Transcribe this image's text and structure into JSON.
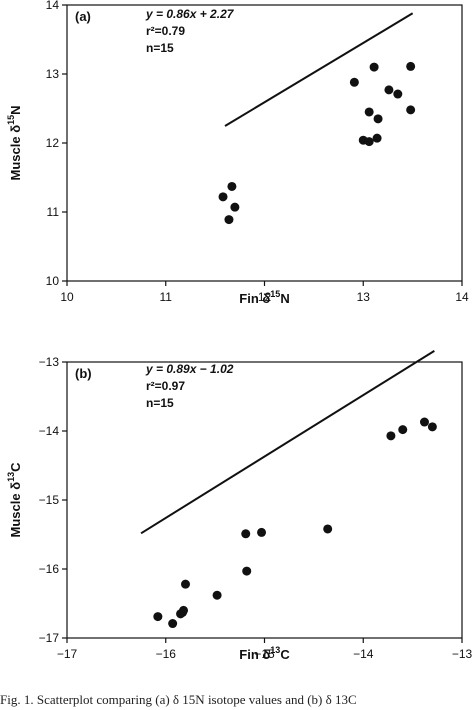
{
  "chart_data": [
    {
      "type": "scatter",
      "panel_label": "(a)",
      "xlabel": {
        "text": "Fin δ",
        "sup": "15",
        "suffix": "N"
      },
      "ylabel": {
        "text": "Muscle δ",
        "sup": "15",
        "suffix": "N"
      },
      "xlim": [
        10,
        14
      ],
      "ylim": [
        10,
        14
      ],
      "xticks": [
        "10",
        "11",
        "12",
        "13",
        "14"
      ],
      "yticks": [
        "10",
        "11",
        "12",
        "13",
        "14"
      ],
      "annotation": {
        "equation": "y = 0.86x + 2.27",
        "r2": "r²=0.79",
        "n": "n=15"
      },
      "fit": {
        "x": [
          11.6,
          13.5
        ]
      },
      "points": {
        "x": [
          11.58,
          11.64,
          11.67,
          11.7,
          12.91,
          13.0,
          13.06,
          13.06,
          13.11,
          13.14,
          13.15,
          13.26,
          13.35,
          13.48,
          13.48
        ],
        "y": [
          11.22,
          10.89,
          11.37,
          11.07,
          12.88,
          12.04,
          12.45,
          12.02,
          13.1,
          12.07,
          12.35,
          12.77,
          12.71,
          13.11,
          12.48
        ]
      }
    },
    {
      "type": "scatter",
      "panel_label": "(b)",
      "xlabel": {
        "text": "Fin δ",
        "sup": "13",
        "suffix": "C"
      },
      "ylabel": {
        "text": "Muscle δ",
        "sup": "13",
        "suffix": "C"
      },
      "xlim": [
        -17,
        -13
      ],
      "ylim": [
        -17,
        -13
      ],
      "xticks": [
        "−17",
        "−16",
        "−15",
        "−14",
        "−13"
      ],
      "yticks": [
        "−17",
        "−16",
        "−15",
        "−14",
        "−13"
      ],
      "annotation": {
        "equation": "y = 0.89x − 1.02",
        "r2": "r²=0.97",
        "n": "n=15"
      },
      "fit": {
        "x": [
          -16.25,
          -13.28
        ]
      },
      "points": {
        "x": [
          -16.08,
          -15.93,
          -15.83,
          -15.8,
          -15.48,
          -15.19,
          -15.18,
          -15.03,
          -14.36,
          -13.72,
          -13.6,
          -13.38,
          -13.3,
          -15.85,
          -15.82
        ],
        "y": [
          -16.69,
          -16.79,
          -16.63,
          -16.22,
          -16.38,
          -15.49,
          -16.03,
          -15.47,
          -15.42,
          -14.07,
          -13.98,
          -13.87,
          -13.94,
          -16.65,
          -16.6
        ]
      }
    }
  ],
  "caption": "Fig. 1. Scatterplot comparing (a) δ 15N isotope values and (b) δ 13C"
}
